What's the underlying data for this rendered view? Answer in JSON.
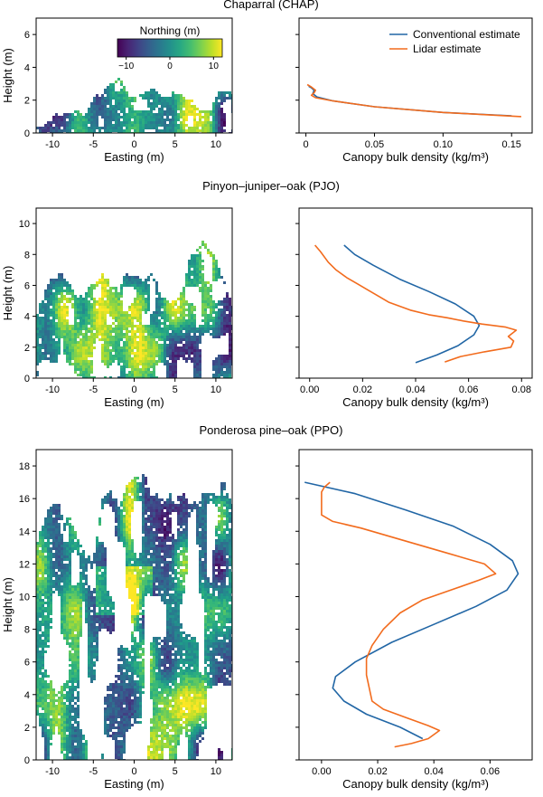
{
  "colors": {
    "conventional": "#2166a5",
    "lidar": "#f26b1d",
    "viridis_low": "#440154",
    "viridis_mid": "#21918c",
    "viridis_high": "#fde725"
  },
  "colorbar": {
    "title": "Northing (m)",
    "ticks": [
      "−10",
      "0",
      "10"
    ],
    "range": [
      -12,
      12
    ],
    "colormap": "viridis"
  },
  "legend": {
    "conventional": "Conventional estimate",
    "lidar": "Lidar estimate",
    "placement": "top-right"
  },
  "chart_data": [
    {
      "type": "scatter",
      "title": "Chaparral (CHAP)",
      "panel": "lidar point cloud (side view, colored by northing)",
      "xlabel": "Easting (m)",
      "ylabel": "Height (m)",
      "xlim": [
        -12,
        12
      ],
      "ylim": [
        0,
        7
      ],
      "xticks": [
        -10,
        -5,
        0,
        5,
        10
      ],
      "yticks": [
        0,
        2,
        4,
        6
      ],
      "canopy_profile": [
        [
          -12,
          0.4
        ],
        [
          -11,
          0.6
        ],
        [
          -10,
          1.1
        ],
        [
          -9,
          1.0
        ],
        [
          -8,
          1.3
        ],
        [
          -7,
          1.5
        ],
        [
          -6,
          1.2
        ],
        [
          -5,
          2.2
        ],
        [
          -4,
          2.6
        ],
        [
          -3,
          3.0
        ],
        [
          -2,
          3.3
        ],
        [
          -1,
          2.6
        ],
        [
          0,
          2.2
        ],
        [
          1,
          2.4
        ],
        [
          2,
          2.8
        ],
        [
          3,
          2.3
        ],
        [
          4,
          2.2
        ],
        [
          5,
          2.6
        ],
        [
          6,
          2.2
        ],
        [
          7,
          2.0
        ],
        [
          8,
          1.6
        ],
        [
          9,
          1.4
        ],
        [
          10,
          2.4
        ],
        [
          11,
          2.6
        ],
        [
          12,
          2.4
        ]
      ],
      "colorbar_title": "Northing (m)"
    },
    {
      "type": "line",
      "title": "",
      "xlabel": "Canopy bulk density (kg/m³)",
      "ylabel": "",
      "xlim": [
        -0.005,
        0.165
      ],
      "ylim": [
        0,
        7
      ],
      "xticks": [
        0,
        0.05,
        0.1,
        0.15
      ],
      "xtick_labels": [
        "0",
        "0.05",
        "0.10",
        "0.15"
      ],
      "series": [
        {
          "name": "Conventional estimate",
          "points": [
            [
              0.15,
              1.05
            ],
            [
              0.1,
              1.25
            ],
            [
              0.05,
              1.6
            ],
            [
              0.02,
              1.95
            ],
            [
              0.008,
              2.2
            ],
            [
              0.005,
              2.4
            ],
            [
              0.006,
              2.6
            ],
            [
              0.004,
              2.75
            ],
            [
              0.002,
              2.85
            ]
          ]
        },
        {
          "name": "Lidar estimate",
          "points": [
            [
              0.157,
              1.0
            ],
            [
              0.1,
              1.25
            ],
            [
              0.05,
              1.6
            ],
            [
              0.02,
              1.95
            ],
            [
              0.007,
              2.15
            ],
            [
              0.004,
              2.3
            ],
            [
              0.006,
              2.45
            ],
            [
              0.007,
              2.6
            ],
            [
              0.004,
              2.8
            ],
            [
              0.001,
              2.95
            ]
          ]
        }
      ]
    },
    {
      "type": "scatter",
      "title": "Pinyon–juniper–oak (PJO)",
      "panel": "lidar point cloud (side view, colored by northing)",
      "xlabel": "Easting (m)",
      "ylabel": "Height (m)",
      "xlim": [
        -12,
        12
      ],
      "ylim": [
        0,
        11
      ],
      "xticks": [
        -10,
        -5,
        0,
        5,
        10
      ],
      "yticks": [
        0,
        2,
        4,
        6,
        8,
        10
      ],
      "canopy_profile": [
        [
          -12,
          4.2
        ],
        [
          -11,
          5.6
        ],
        [
          -10,
          6.6
        ],
        [
          -9,
          6.9
        ],
        [
          -8,
          6.1
        ],
        [
          -7,
          5.1
        ],
        [
          -6,
          5.8
        ],
        [
          -5,
          6.1
        ],
        [
          -4,
          6.6
        ],
        [
          -3,
          6.2
        ],
        [
          -2,
          5.9
        ],
        [
          -1,
          6.8
        ],
        [
          0,
          6.6
        ],
        [
          1,
          6.3
        ],
        [
          2,
          6.9
        ],
        [
          3,
          5.6
        ],
        [
          4,
          4.9
        ],
        [
          5,
          5.0
        ],
        [
          6,
          6.6
        ],
        [
          7,
          8.3
        ],
        [
          8,
          8.8
        ],
        [
          9,
          8.4
        ],
        [
          10,
          7.6
        ],
        [
          11,
          6.1
        ],
        [
          12,
          4.6
        ]
      ],
      "colorbar_title": ""
    },
    {
      "type": "line",
      "title": "",
      "xlabel": "Canopy bulk density (kg/m³)",
      "ylabel": "",
      "xlim": [
        -0.004,
        0.084
      ],
      "ylim": [
        0,
        11
      ],
      "xticks": [
        0,
        0.02,
        0.04,
        0.06,
        0.08
      ],
      "xtick_labels": [
        "0.00",
        "0.02",
        "0.04",
        "0.06",
        "0.08"
      ],
      "series": [
        {
          "name": "Conventional estimate",
          "points": [
            [
              0.04,
              1.0
            ],
            [
              0.048,
              1.5
            ],
            [
              0.056,
              2.1
            ],
            [
              0.062,
              2.8
            ],
            [
              0.064,
              3.4
            ],
            [
              0.062,
              4.0
            ],
            [
              0.055,
              4.8
            ],
            [
              0.045,
              5.6
            ],
            [
              0.034,
              6.4
            ],
            [
              0.024,
              7.3
            ],
            [
              0.017,
              8.0
            ],
            [
              0.013,
              8.6
            ]
          ]
        },
        {
          "name": "Lidar estimate",
          "points": [
            [
              0.051,
              1.05
            ],
            [
              0.057,
              1.4
            ],
            [
              0.066,
              1.7
            ],
            [
              0.076,
              2.0
            ],
            [
              0.077,
              2.4
            ],
            [
              0.075,
              2.7
            ],
            [
              0.078,
              3.1
            ],
            [
              0.074,
              3.3
            ],
            [
              0.065,
              3.5
            ],
            [
              0.058,
              3.7
            ],
            [
              0.052,
              3.9
            ],
            [
              0.045,
              4.1
            ],
            [
              0.038,
              4.4
            ],
            [
              0.03,
              4.9
            ],
            [
              0.026,
              5.3
            ],
            [
              0.022,
              5.7
            ],
            [
              0.018,
              6.1
            ],
            [
              0.014,
              6.5
            ],
            [
              0.01,
              7.0
            ],
            [
              0.007,
              7.5
            ],
            [
              0.004,
              8.2
            ],
            [
              0.002,
              8.6
            ]
          ]
        }
      ]
    },
    {
      "type": "scatter",
      "title": "Ponderosa pine–oak (PPO)",
      "panel": "lidar point cloud (side view, colored by northing)",
      "xlabel": "Easting (m)",
      "ylabel": "Height (m)",
      "xlim": [
        -12,
        12
      ],
      "ylim": [
        0,
        19
      ],
      "xticks": [
        -10,
        -5,
        0,
        5,
        10
      ],
      "yticks": [
        0,
        2,
        4,
        6,
        8,
        10,
        12,
        14,
        16,
        18
      ],
      "canopy_profile": [
        [
          -12,
          13.5
        ],
        [
          -11,
          15.2
        ],
        [
          -10,
          15.6
        ],
        [
          -9,
          15.3
        ],
        [
          -8,
          14.6
        ],
        [
          -7,
          13.4
        ],
        [
          -6,
          12.0
        ],
        [
          -5,
          13.0
        ],
        [
          -4,
          15.8
        ],
        [
          -3,
          16.6
        ],
        [
          -2,
          15.4
        ],
        [
          -1,
          16.9
        ],
        [
          0,
          17.2
        ],
        [
          1,
          17.6
        ],
        [
          2,
          16.0
        ],
        [
          3,
          16.5
        ],
        [
          4,
          16.2
        ],
        [
          5,
          16.3
        ],
        [
          6,
          16.0
        ],
        [
          7,
          15.5
        ],
        [
          8,
          16.0
        ],
        [
          9,
          16.5
        ],
        [
          10,
          16.4
        ],
        [
          11,
          17.0
        ],
        [
          12,
          15.8
        ]
      ],
      "colorbar_title": ""
    },
    {
      "type": "line",
      "title": "",
      "xlabel": "Canopy bulk density (kg/m³)",
      "ylabel": "",
      "xlim": [
        -0.008,
        0.075
      ],
      "ylim": [
        0,
        19
      ],
      "xticks": [
        0,
        0.02,
        0.04,
        0.06
      ],
      "xtick_labels": [
        "0.00",
        "0.02",
        "0.04",
        "0.06"
      ],
      "series": [
        {
          "name": "Conventional estimate",
          "points": [
            [
              0.036,
              1.3
            ],
            [
              0.028,
              2.0
            ],
            [
              0.016,
              2.8
            ],
            [
              0.008,
              3.6
            ],
            [
              0.004,
              4.4
            ],
            [
              0.005,
              5.1
            ],
            [
              0.012,
              6.0
            ],
            [
              0.025,
              7.2
            ],
            [
              0.04,
              8.3
            ],
            [
              0.055,
              9.4
            ],
            [
              0.066,
              10.4
            ],
            [
              0.07,
              11.4
            ],
            [
              0.068,
              12.2
            ],
            [
              0.06,
              13.2
            ],
            [
              0.047,
              14.3
            ],
            [
              0.03,
              15.3
            ],
            [
              0.012,
              16.3
            ],
            [
              -0.006,
              17.0
            ]
          ]
        },
        {
          "name": "Lidar estimate",
          "points": [
            [
              0.026,
              0.8
            ],
            [
              0.032,
              1.0
            ],
            [
              0.038,
              1.3
            ],
            [
              0.042,
              1.8
            ],
            [
              0.038,
              2.1
            ],
            [
              0.03,
              2.6
            ],
            [
              0.022,
              3.1
            ],
            [
              0.018,
              3.6
            ],
            [
              0.017,
              4.4
            ],
            [
              0.016,
              5.2
            ],
            [
              0.016,
              6.2
            ],
            [
              0.018,
              7.0
            ],
            [
              0.022,
              8.0
            ],
            [
              0.028,
              9.0
            ],
            [
              0.036,
              9.8
            ],
            [
              0.046,
              10.4
            ],
            [
              0.056,
              11.0
            ],
            [
              0.062,
              11.4
            ],
            [
              0.058,
              12.0
            ],
            [
              0.044,
              12.7
            ],
            [
              0.028,
              13.5
            ],
            [
              0.014,
              14.2
            ],
            [
              0.004,
              14.6
            ],
            [
              0.0,
              15.0
            ],
            [
              0.0,
              15.8
            ],
            [
              0.0,
              16.4
            ],
            [
              0.001,
              16.7
            ],
            [
              0.003,
              17.0
            ]
          ]
        }
      ]
    }
  ]
}
